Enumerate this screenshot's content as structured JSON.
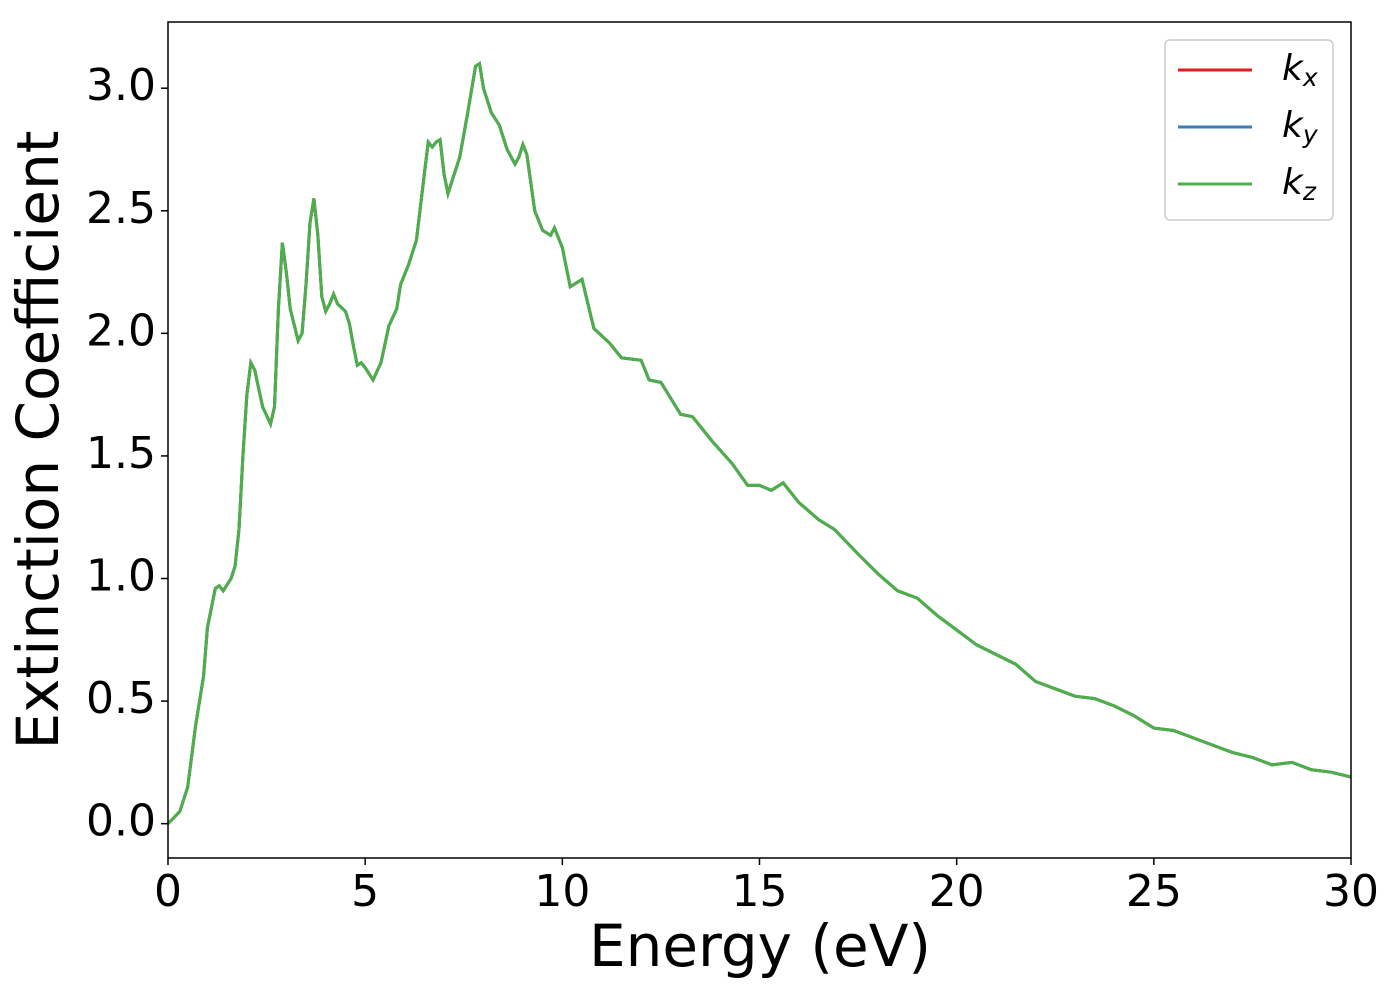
{
  "chart_data": {
    "type": "line",
    "xlabel": "Energy (eV)",
    "ylabel": "Extinction Coefficient",
    "x": [
      0,
      0.3,
      0.5,
      0.7,
      0.9,
      1.0,
      1.2,
      1.3,
      1.4,
      1.6,
      1.7,
      1.8,
      1.9,
      2.0,
      2.1,
      2.2,
      2.4,
      2.6,
      2.7,
      2.8,
      2.9,
      3.0,
      3.1,
      3.3,
      3.4,
      3.5,
      3.6,
      3.7,
      3.8,
      3.9,
      4.0,
      4.1,
      4.2,
      4.3,
      4.5,
      4.6,
      4.7,
      4.8,
      4.9,
      5.0,
      5.2,
      5.4,
      5.6,
      5.8,
      5.9,
      6.1,
      6.3,
      6.5,
      6.6,
      6.7,
      6.8,
      6.9,
      7.0,
      7.1,
      7.2,
      7.4,
      7.6,
      7.8,
      7.9,
      8.0,
      8.2,
      8.4,
      8.6,
      8.8,
      8.9,
      9.0,
      9.1,
      9.3,
      9.5,
      9.7,
      9.8,
      10.0,
      10.2,
      10.5,
      10.8,
      11.2,
      11.5,
      12.0,
      12.2,
      12.5,
      13.0,
      13.3,
      13.8,
      14.3,
      14.7,
      15.0,
      15.3,
      15.6,
      16.0,
      16.5,
      16.9,
      17.5,
      18.0,
      18.5,
      19.0,
      19.5,
      20.0,
      20.5,
      21.0,
      21.5,
      22.0,
      22.5,
      23.0,
      23.5,
      24.0,
      24.5,
      25.0,
      25.5,
      26.0,
      26.5,
      27.0,
      27.5,
      28.0,
      28.5,
      29.0,
      29.5,
      30.0
    ],
    "series": [
      {
        "name": "kx",
        "color": "#e41a1c",
        "values": [
          0,
          0.05,
          0.15,
          0.4,
          0.6,
          0.8,
          0.96,
          0.97,
          0.95,
          1.0,
          1.05,
          1.2,
          1.5,
          1.75,
          1.88,
          1.85,
          1.7,
          1.63,
          1.7,
          2.1,
          2.37,
          2.25,
          2.1,
          1.97,
          2.0,
          2.2,
          2.45,
          2.55,
          2.4,
          2.15,
          2.09,
          2.12,
          2.16,
          2.12,
          2.09,
          2.04,
          1.95,
          1.87,
          1.88,
          1.86,
          1.81,
          1.88,
          2.03,
          2.1,
          2.2,
          2.28,
          2.38,
          2.65,
          2.78,
          2.76,
          2.78,
          2.79,
          2.65,
          2.57,
          2.62,
          2.72,
          2.9,
          3.09,
          3.1,
          3.0,
          2.9,
          2.85,
          2.75,
          2.69,
          2.72,
          2.77,
          2.73,
          2.5,
          2.42,
          2.4,
          2.43,
          2.35,
          2.19,
          2.22,
          2.02,
          1.96,
          1.9,
          1.89,
          1.81,
          1.8,
          1.67,
          1.66,
          1.56,
          1.47,
          1.38,
          1.38,
          1.36,
          1.39,
          1.31,
          1.24,
          1.2,
          1.1,
          1.02,
          0.95,
          0.92,
          0.85,
          0.79,
          0.73,
          0.69,
          0.65,
          0.58,
          0.55,
          0.52,
          0.51,
          0.48,
          0.44,
          0.39,
          0.38,
          0.35,
          0.32,
          0.29,
          0.27,
          0.24,
          0.25,
          0.22,
          0.21,
          0.19
        ]
      },
      {
        "name": "ky",
        "color": "#377eb8",
        "values": [
          0,
          0.05,
          0.15,
          0.4,
          0.6,
          0.8,
          0.96,
          0.97,
          0.95,
          1.0,
          1.05,
          1.2,
          1.5,
          1.75,
          1.88,
          1.85,
          1.7,
          1.63,
          1.7,
          2.1,
          2.37,
          2.25,
          2.1,
          1.97,
          2.0,
          2.2,
          2.45,
          2.55,
          2.4,
          2.15,
          2.09,
          2.12,
          2.16,
          2.12,
          2.09,
          2.04,
          1.95,
          1.87,
          1.88,
          1.86,
          1.81,
          1.88,
          2.03,
          2.1,
          2.2,
          2.28,
          2.38,
          2.65,
          2.78,
          2.76,
          2.78,
          2.79,
          2.65,
          2.57,
          2.62,
          2.72,
          2.9,
          3.09,
          3.1,
          3.0,
          2.9,
          2.85,
          2.75,
          2.69,
          2.72,
          2.77,
          2.73,
          2.5,
          2.42,
          2.4,
          2.43,
          2.35,
          2.19,
          2.22,
          2.02,
          1.96,
          1.9,
          1.89,
          1.81,
          1.8,
          1.67,
          1.66,
          1.56,
          1.47,
          1.38,
          1.38,
          1.36,
          1.39,
          1.31,
          1.24,
          1.2,
          1.1,
          1.02,
          0.95,
          0.92,
          0.85,
          0.79,
          0.73,
          0.69,
          0.65,
          0.58,
          0.55,
          0.52,
          0.51,
          0.48,
          0.44,
          0.39,
          0.38,
          0.35,
          0.32,
          0.29,
          0.27,
          0.24,
          0.25,
          0.22,
          0.21,
          0.19
        ]
      },
      {
        "name": "kz",
        "color": "#4daf4a",
        "values": [
          0,
          0.05,
          0.15,
          0.4,
          0.6,
          0.8,
          0.96,
          0.97,
          0.95,
          1.0,
          1.05,
          1.2,
          1.5,
          1.75,
          1.88,
          1.85,
          1.7,
          1.63,
          1.7,
          2.1,
          2.37,
          2.25,
          2.1,
          1.97,
          2.0,
          2.2,
          2.45,
          2.55,
          2.4,
          2.15,
          2.09,
          2.12,
          2.16,
          2.12,
          2.09,
          2.04,
          1.95,
          1.87,
          1.88,
          1.86,
          1.81,
          1.88,
          2.03,
          2.1,
          2.2,
          2.28,
          2.38,
          2.65,
          2.78,
          2.76,
          2.78,
          2.79,
          2.65,
          2.57,
          2.62,
          2.72,
          2.9,
          3.09,
          3.1,
          3.0,
          2.9,
          2.85,
          2.75,
          2.69,
          2.72,
          2.77,
          2.73,
          2.5,
          2.42,
          2.4,
          2.43,
          2.35,
          2.19,
          2.22,
          2.02,
          1.96,
          1.9,
          1.89,
          1.81,
          1.8,
          1.67,
          1.66,
          1.56,
          1.47,
          1.38,
          1.38,
          1.36,
          1.39,
          1.31,
          1.24,
          1.2,
          1.1,
          1.02,
          0.95,
          0.92,
          0.85,
          0.79,
          0.73,
          0.69,
          0.65,
          0.58,
          0.55,
          0.52,
          0.51,
          0.48,
          0.44,
          0.39,
          0.38,
          0.35,
          0.32,
          0.29,
          0.27,
          0.24,
          0.25,
          0.22,
          0.21,
          0.19
        ]
      }
    ],
    "xlim": [
      0,
      30
    ],
    "xticks": [
      0,
      5,
      10,
      15,
      20,
      25,
      30
    ],
    "ylim": [
      -0.14,
      3.27
    ],
    "yticks": [
      {
        "value": 0,
        "label": "0.0"
      },
      0.5,
      {
        "value": 1,
        "label": "1.0"
      },
      1.5,
      {
        "value": 2,
        "label": "2.0"
      },
      2.5,
      {
        "value": 3,
        "label": "3.0"
      }
    ],
    "grid": false,
    "legend": "upper right"
  }
}
